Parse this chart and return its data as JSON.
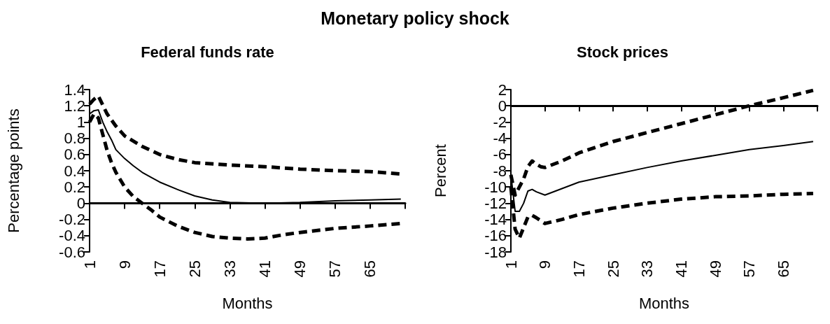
{
  "chart_data": [
    {
      "type": "line",
      "title": "Federal funds rate",
      "annotations": [
        "Monetary policy shock"
      ],
      "xlabel": "Months",
      "ylabel": "Percentage points",
      "xlim": [
        1,
        73
      ],
      "xticks": [
        1,
        9,
        17,
        25,
        33,
        41,
        49,
        57,
        65,
        {
          "value": 73,
          "label": null
        }
      ],
      "ylim": [
        -0.6,
        1.4
      ],
      "yticks": [
        -0.6,
        -0.4,
        -0.2,
        0,
        0.2,
        0.4,
        0.6,
        0.8,
        1,
        1.2,
        1.4
      ],
      "marker": "none",
      "series": [
        {
          "color": "#000000",
          "line_style": "solid",
          "x": [
            1,
            2,
            3,
            4,
            5,
            6,
            7,
            9,
            11,
            13,
            17,
            21,
            25,
            29,
            33,
            41,
            49,
            57,
            65,
            72
          ],
          "values": [
            1.1,
            1.14,
            1.15,
            1.0,
            0.88,
            0.78,
            0.66,
            0.55,
            0.46,
            0.38,
            0.26,
            0.17,
            0.09,
            0.04,
            0.01,
            0,
            0.01,
            0.03,
            0.04,
            0.05
          ]
        },
        {
          "color": "#000000",
          "line_style": "dashed",
          "x": [
            1,
            2,
            3,
            5,
            7,
            9,
            13,
            17,
            21,
            25,
            33,
            41,
            49,
            57,
            65,
            72
          ],
          "values": [
            1.22,
            1.28,
            1.32,
            1.1,
            0.95,
            0.83,
            0.7,
            0.6,
            0.54,
            0.5,
            0.47,
            0.45,
            0.42,
            0.4,
            0.39,
            0.36
          ]
        },
        {
          "color": "#000000",
          "line_style": "dashed",
          "x": [
            1,
            2,
            3,
            4,
            5,
            6,
            7,
            9,
            11,
            13,
            15,
            17,
            21,
            25,
            29,
            33,
            37,
            41,
            45,
            49,
            57,
            65,
            72
          ],
          "values": [
            1.0,
            1.1,
            1.05,
            0.85,
            0.65,
            0.5,
            0.38,
            0.2,
            0.08,
            0.0,
            -0.08,
            -0.17,
            -0.28,
            -0.36,
            -0.41,
            -0.43,
            -0.44,
            -0.43,
            -0.39,
            -0.36,
            -0.31,
            -0.28,
            -0.25
          ]
        }
      ]
    },
    {
      "type": "line",
      "title": "Stock prices",
      "xlabel": "Months",
      "ylabel": "Percent",
      "xlim": [
        1,
        73
      ],
      "xticks": [
        1,
        9,
        17,
        25,
        33,
        41,
        49,
        57,
        65,
        {
          "value": 73,
          "label": null
        }
      ],
      "ylim": [
        -18,
        2
      ],
      "yticks": [
        -18,
        -16,
        -14,
        -12,
        -10,
        -8,
        -6,
        -4,
        -2,
        0,
        2
      ],
      "marker": "none",
      "series": [
        {
          "color": "#000000",
          "line_style": "solid",
          "x": [
            1,
            2,
            3,
            4,
            5,
            6,
            7,
            9,
            13,
            17,
            25,
            33,
            41,
            49,
            57,
            65,
            72
          ],
          "values": [
            -8.5,
            -13,
            -13,
            -12,
            -10.5,
            -10.3,
            -10.6,
            -11,
            -10.2,
            -9.4,
            -8.5,
            -7.6,
            -6.8,
            -6.1,
            -5.4,
            -4.9,
            -4.4
          ]
        },
        {
          "color": "#000000",
          "line_style": "dashed",
          "x": [
            1,
            2,
            3,
            4,
            5,
            6,
            7,
            8,
            9,
            13,
            17,
            25,
            33,
            41,
            49,
            57,
            65,
            72
          ],
          "values": [
            -8.5,
            -11,
            -10,
            -9,
            -7.5,
            -6.8,
            -7.2,
            -7.5,
            -7.6,
            -6.8,
            -5.8,
            -4.4,
            -3.3,
            -2.2,
            -1.1,
            0,
            1,
            1.9
          ]
        },
        {
          "color": "#000000",
          "line_style": "dashed",
          "x": [
            1,
            2,
            3,
            4,
            5,
            6,
            7,
            9,
            13,
            17,
            25,
            33,
            41,
            49,
            57,
            65,
            72
          ],
          "values": [
            -10,
            -15.2,
            -16.3,
            -15,
            -13.7,
            -13.5,
            -13.8,
            -14.5,
            -14,
            -13.4,
            -12.6,
            -12,
            -11.5,
            -11.2,
            -11.1,
            -10.9,
            -10.8
          ]
        }
      ]
    }
  ]
}
